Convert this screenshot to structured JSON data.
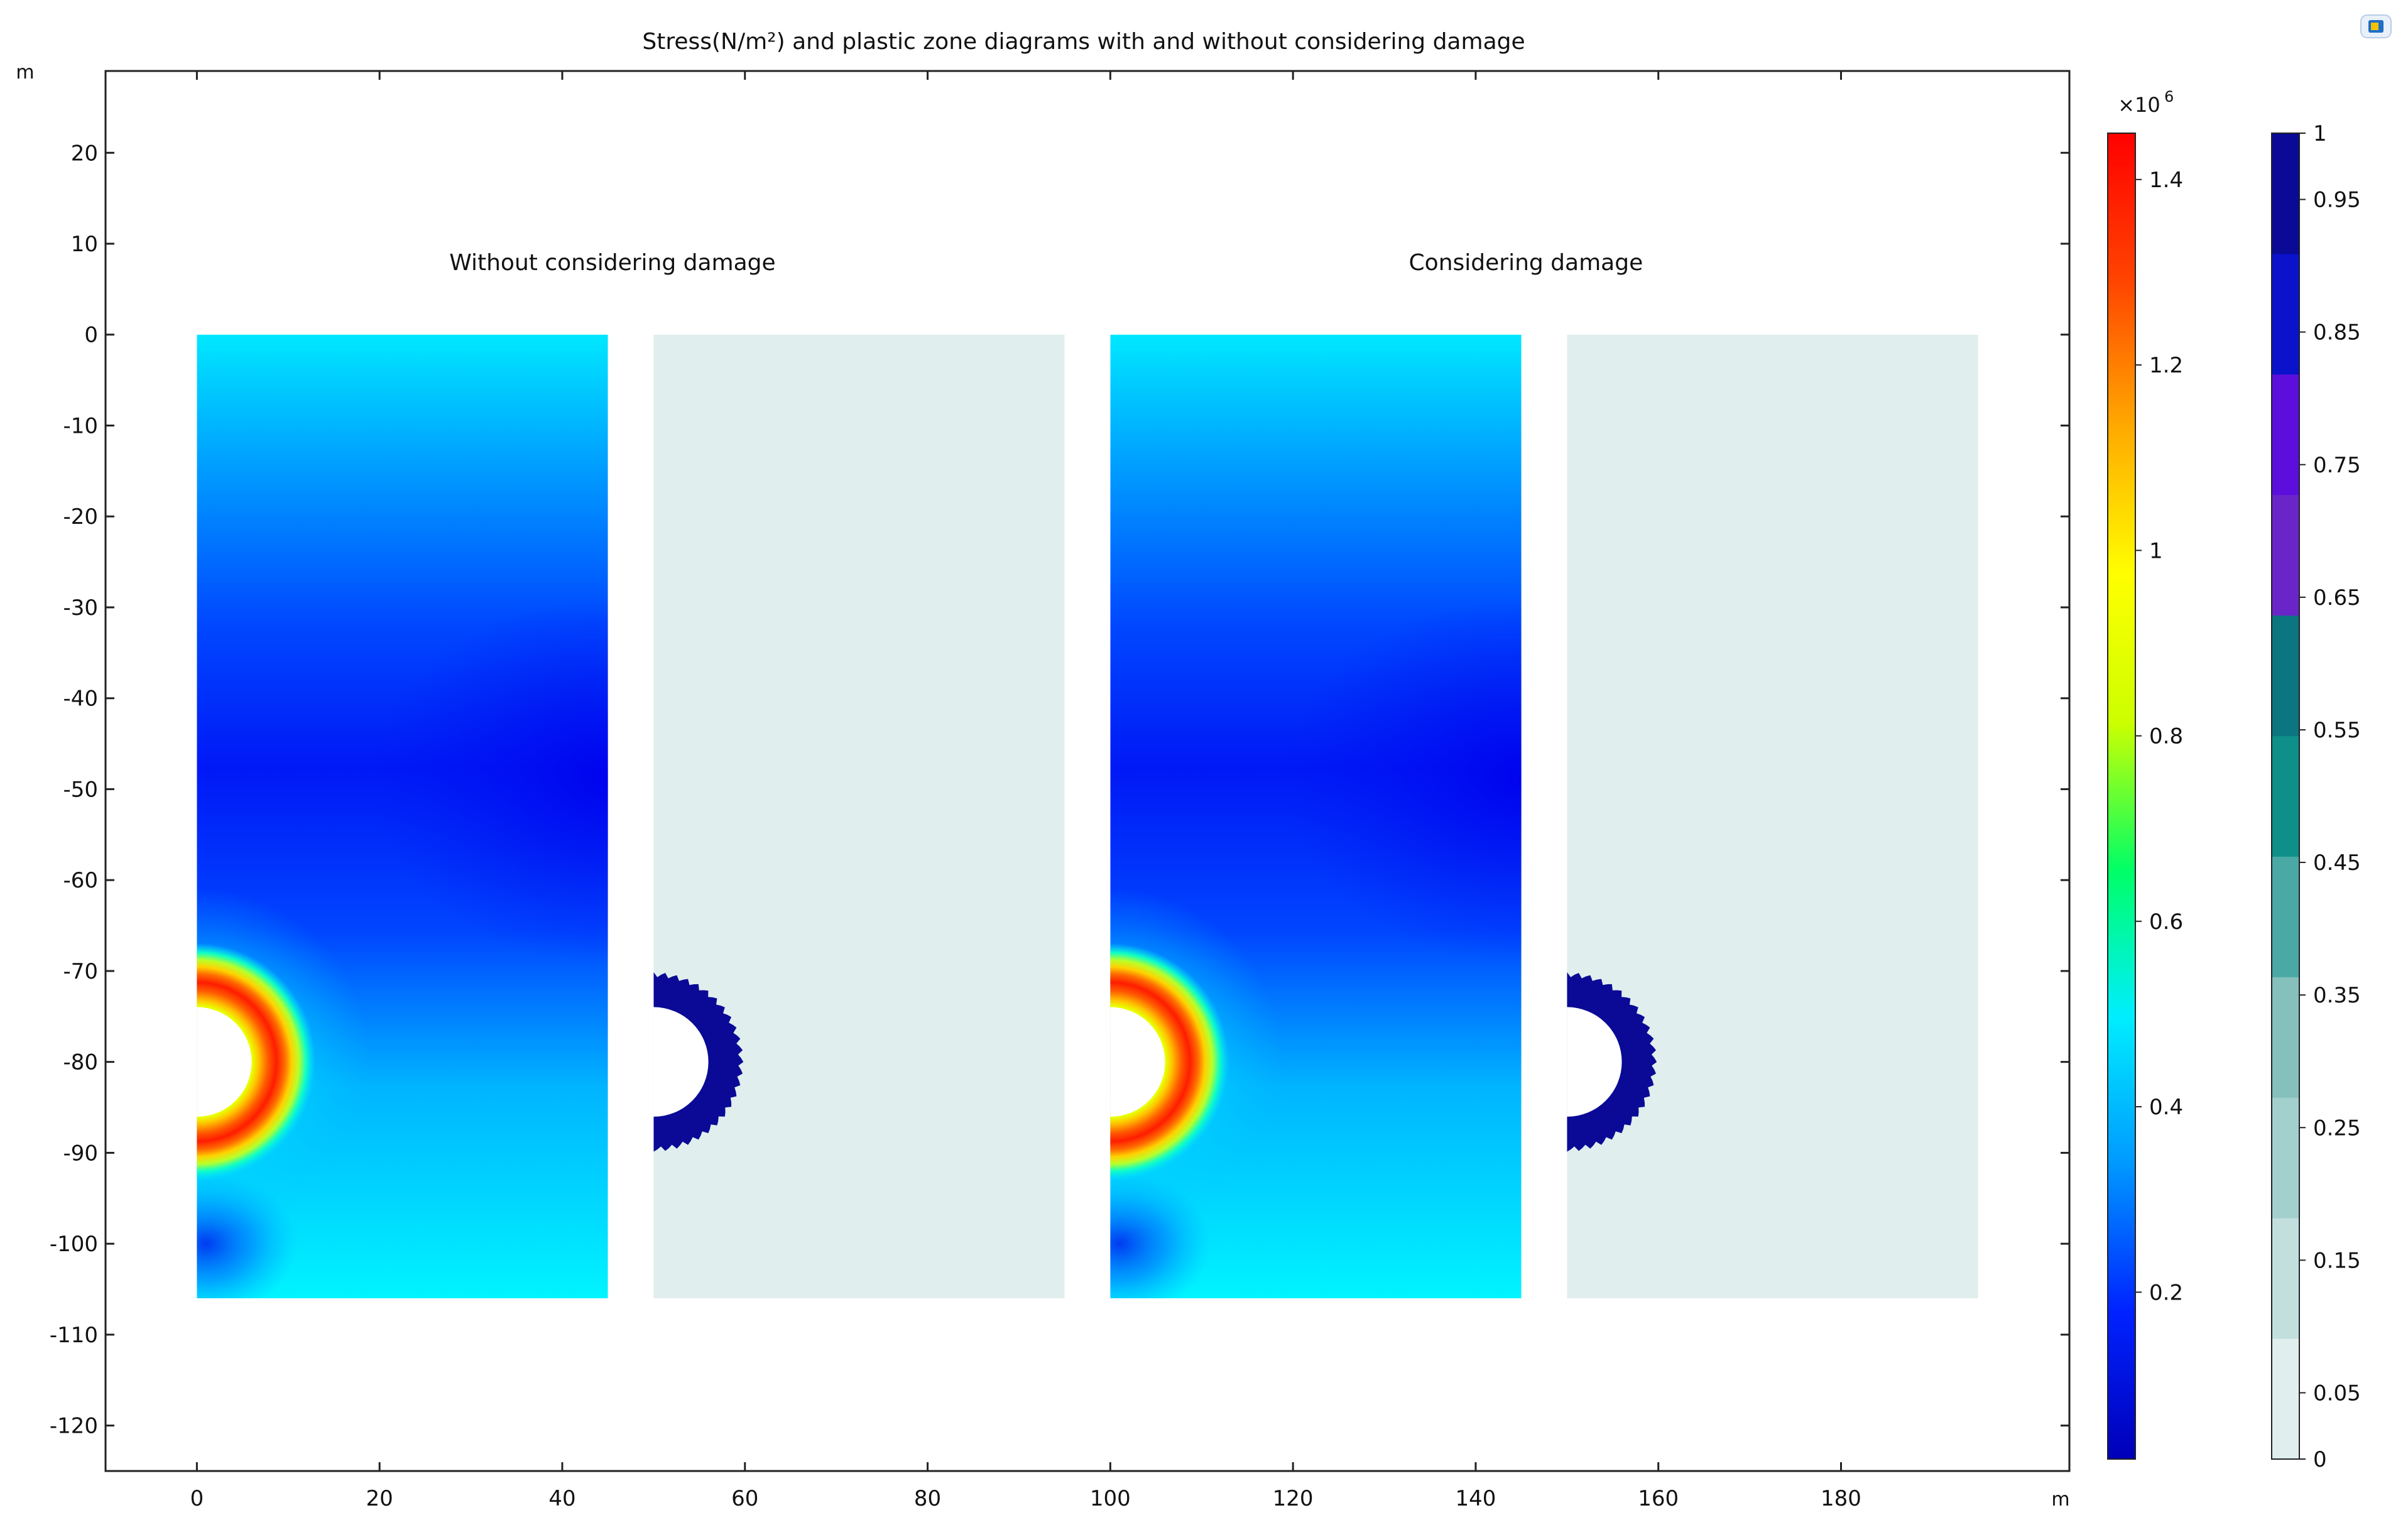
{
  "chart_data": {
    "type": "heatmap",
    "title": "Stress(N/m²) and plastic zone diagrams with and without considering damage",
    "xlabel": "m",
    "ylabel": "m",
    "xlim": [
      -10,
      205
    ],
    "ylim": [
      -125,
      29
    ],
    "x_ticks": [
      0,
      20,
      40,
      60,
      80,
      100,
      120,
      140,
      160,
      180
    ],
    "y_ticks": [
      20,
      10,
      0,
      -10,
      -20,
      -30,
      -40,
      -50,
      -60,
      -70,
      -80,
      -90,
      -100,
      -110,
      -120
    ],
    "panels": [
      {
        "label": "Without considering damage",
        "stress_domain": {
          "x": [
            0,
            45
          ],
          "y": [
            -106,
            0
          ]
        },
        "plastic_domain": {
          "x": [
            50,
            95
          ],
          "y": [
            -106,
            0
          ]
        },
        "tunnel": {
          "center_y": -80,
          "radius": 6,
          "stress_ring_outer_radius": 13,
          "plastic_ring_outer_radius": 9.5
        }
      },
      {
        "label": "Considering damage",
        "stress_domain": {
          "x": [
            100,
            145
          ],
          "y": [
            -106,
            0
          ]
        },
        "plastic_domain": {
          "x": [
            150,
            195
          ],
          "y": [
            -106,
            0
          ]
        },
        "tunnel": {
          "center_y": -80,
          "radius": 6,
          "stress_ring_outer_radius": 13,
          "plastic_ring_outer_radius": 9.5
        }
      }
    ],
    "stress_colorbar": {
      "multiplier": "×10",
      "exponent": "6",
      "range": [
        0.02,
        1.45
      ],
      "ticks": [
        0.2,
        0.4,
        0.6,
        0.8,
        1,
        1.2,
        1.4
      ],
      "colormap": [
        "#0000b8",
        "#0022ff",
        "#0099ff",
        "#00eeff",
        "#00ff66",
        "#ccff00",
        "#ffff00",
        "#ffaa00",
        "#ff4400",
        "#ff0000"
      ]
    },
    "plastic_colorbar": {
      "range": [
        0,
        1
      ],
      "ticks": [
        0,
        0.05,
        0.15,
        0.25,
        0.35,
        0.45,
        0.55,
        0.65,
        0.75,
        0.85,
        0.95,
        1
      ],
      "band_colors": [
        "#e0eeee",
        "#c2dfdd",
        "#a3cfcc",
        "#85c0bc",
        "#4aa9a4",
        "#0e8f8a",
        "#0b7580",
        "#6a25c8",
        "#5c0fdc",
        "#0a12cc",
        "#0a0a96"
      ]
    },
    "colors": {
      "plastic_background": "#e0eeee",
      "plastic_ring": "#0a0a96",
      "stress_far": "#00e6ff",
      "stress_peak": "#ff1e00"
    }
  }
}
